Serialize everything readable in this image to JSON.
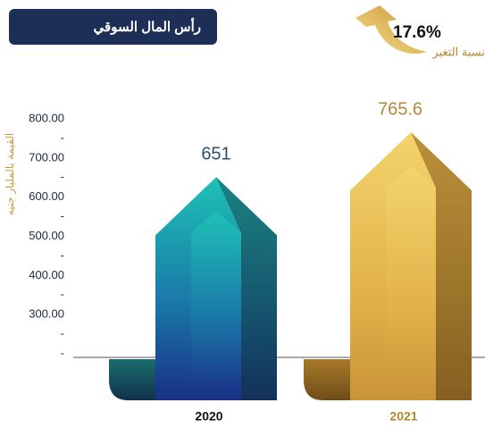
{
  "chart_data": {
    "type": "bar",
    "title": "رأس المال السوقي",
    "change": "17.6%",
    "change_label": "نسبة التغير",
    "y_label": "القيمة بالمليار جنيه",
    "categories": [
      "2020",
      "2021"
    ],
    "values": [
      651,
      765.6
    ],
    "colors": [
      "#1a6f9a",
      "#d4a63e"
    ],
    "ylim": [
      200,
      800
    ],
    "yticks": [
      {
        "value": 800,
        "label": "800.00"
      },
      {
        "value": 750,
        "label": "-"
      },
      {
        "value": 700,
        "label": "700.00"
      },
      {
        "value": 650,
        "label": "-"
      },
      {
        "value": 600,
        "label": "600.00"
      },
      {
        "value": 550,
        "label": "-"
      },
      {
        "value": 500,
        "label": "500.00"
      },
      {
        "value": 450,
        "label": "-"
      },
      {
        "value": 400,
        "label": "400.00"
      },
      {
        "value": 350,
        "label": "-"
      },
      {
        "value": 300,
        "label": "300.00"
      },
      {
        "value": 250,
        "label": "-"
      },
      {
        "value": 200,
        "label": "-"
      }
    ]
  }
}
